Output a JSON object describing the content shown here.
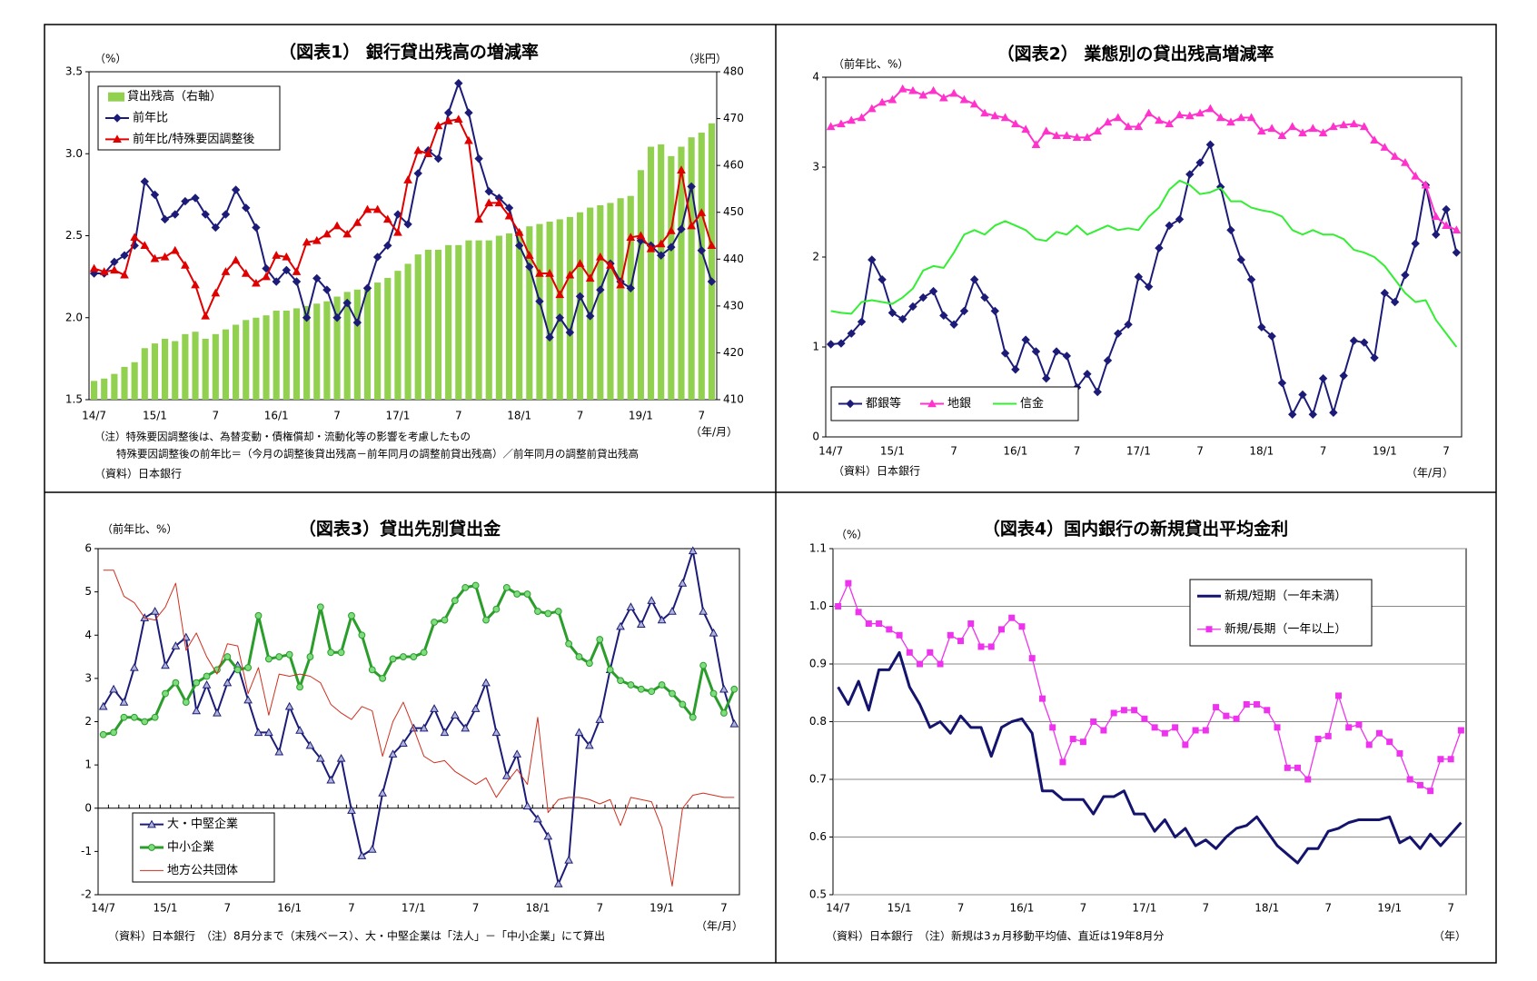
{
  "chart_data": [
    {
      "type": "bar",
      "title": "（図表1） 銀行貸出残高の増減率",
      "y_unit": "（%）",
      "y2_unit": "（兆円）",
      "x_label": "（年/月）",
      "notes": [
        "（注）特殊要因調整後は、為替変動・債権償却・流動化等の影響を考慮したもの",
        "特殊要因調整後の前年比＝（今月の調整後貸出残高－前年同月の調整前貸出残高）／前年同月の調整前貸出残高"
      ],
      "source": "（資料）日本銀行",
      "categories": [
        "14/7",
        null,
        null,
        null,
        null,
        null,
        "15/1",
        null,
        null,
        null,
        null,
        null,
        "7",
        null,
        null,
        null,
        null,
        null,
        "16/1",
        null,
        null,
        null,
        null,
        null,
        "7",
        null,
        null,
        null,
        null,
        null,
        "17/1",
        null,
        null,
        null,
        null,
        null,
        "7",
        null,
        null,
        null,
        null,
        null,
        "18/1",
        null,
        null,
        null,
        null,
        null,
        "7",
        null,
        null,
        null,
        null,
        null,
        "19/1",
        null,
        null,
        null,
        null,
        null,
        "7",
        null
      ],
      "ylim": [
        1.5,
        3.5
      ],
      "yticks": [
        1.5,
        {
          "value": 2,
          "label": "2.0"
        },
        2.5,
        {
          "value": 3,
          "label": "3.0"
        },
        3.5
      ],
      "y2lim": [
        410,
        480
      ],
      "y2ticks": [
        410,
        420,
        430,
        440,
        450,
        460,
        470,
        480
      ],
      "grid": false,
      "legend": "upper left",
      "series": [
        {
          "name": "貸出残高（右軸）",
          "type": "bar",
          "axis": "y2",
          "color": "#92d050",
          "values": [
            414,
            414.5,
            415.5,
            417,
            418,
            421,
            422,
            423,
            422.5,
            424,
            424.5,
            423,
            424,
            425,
            426,
            427,
            427.5,
            428,
            429,
            429,
            429.5,
            430,
            430.5,
            431,
            432,
            433,
            433.5,
            434,
            435,
            436,
            437.5,
            439,
            441,
            442,
            442,
            443,
            443,
            444,
            444,
            444,
            445,
            445.5,
            446,
            447,
            447.5,
            448,
            448.5,
            449,
            450,
            451,
            451.5,
            452,
            453,
            453.5,
            459,
            464,
            464.5,
            462,
            464,
            466,
            467,
            469
          ]
        },
        {
          "name": "前年比",
          "type": "line",
          "color": "#1c1c78",
          "marker": "diamond",
          "values": [
            2.27,
            2.27,
            2.34,
            2.38,
            2.44,
            2.83,
            2.75,
            2.6,
            2.63,
            2.71,
            2.73,
            2.63,
            2.55,
            2.63,
            2.78,
            2.67,
            2.55,
            2.3,
            2.22,
            2.29,
            2.22,
            2.0,
            2.24,
            2.17,
            2.0,
            2.09,
            1.97,
            2.18,
            2.37,
            2.44,
            2.63,
            2.57,
            2.88,
            3.02,
            2.97,
            3.25,
            3.43,
            3.25,
            2.97,
            2.77,
            2.73,
            2.67,
            2.44,
            2.31,
            2.1,
            1.88,
            2.0,
            1.91,
            2.13,
            2.01,
            2.17,
            2.33,
            2.22,
            2.18,
            2.47,
            2.44,
            2.38,
            2.43,
            2.54,
            2.8,
            2.41,
            2.22
          ]
        },
        {
          "name": "前年比/特殊要因調整後",
          "type": "line",
          "color": "#e00000",
          "marker": "triangle",
          "values": [
            2.3,
            2.28,
            2.29,
            2.26,
            2.49,
            2.44,
            2.36,
            2.37,
            2.41,
            2.32,
            2.2,
            2.01,
            2.15,
            2.28,
            2.35,
            2.27,
            2.21,
            2.25,
            2.38,
            2.37,
            2.28,
            2.46,
            2.47,
            2.51,
            2.56,
            2.51,
            2.58,
            2.66,
            2.66,
            2.6,
            2.52,
            2.84,
            3.02,
            3.0,
            3.17,
            3.2,
            3.21,
            3.08,
            2.6,
            2.7,
            2.7,
            2.62,
            2.52,
            2.38,
            2.27,
            2.27,
            2.14,
            2.26,
            2.33,
            2.24,
            2.37,
            2.32,
            2.2,
            2.49,
            2.5,
            2.42,
            2.45,
            2.53,
            2.9,
            2.56,
            2.64,
            2.44
          ]
        }
      ]
    },
    {
      "type": "line",
      "title": "（図表2） 業態別の貸出残高増減率",
      "y_unit": "（前年比、%）",
      "x_label": "（年/月）",
      "source": "（資料）日本銀行",
      "categories": [
        "14/7",
        null,
        null,
        null,
        null,
        null,
        "15/1",
        null,
        null,
        null,
        null,
        null,
        "7",
        null,
        null,
        null,
        null,
        null,
        "16/1",
        null,
        null,
        null,
        null,
        null,
        "7",
        null,
        null,
        null,
        null,
        null,
        "17/1",
        null,
        null,
        null,
        null,
        null,
        "7",
        null,
        null,
        null,
        null,
        null,
        "18/1",
        null,
        null,
        null,
        null,
        null,
        "7",
        null,
        null,
        null,
        null,
        null,
        "19/1",
        null,
        null,
        null,
        null,
        null,
        "7",
        null
      ],
      "ylim": [
        0,
        4
      ],
      "yticks": [
        0,
        1,
        2,
        3,
        4
      ],
      "grid": false,
      "legend": "lower left",
      "series": [
        {
          "name": "都銀等",
          "type": "line",
          "color": "#1c1c78",
          "marker": "diamond",
          "values": [
            1.03,
            1.04,
            1.15,
            1.28,
            1.97,
            1.75,
            1.38,
            1.31,
            1.45,
            1.55,
            1.62,
            1.35,
            1.25,
            1.4,
            1.75,
            1.55,
            1.4,
            0.93,
            0.75,
            1.08,
            0.95,
            0.65,
            0.95,
            0.9,
            0.55,
            0.7,
            0.5,
            0.85,
            1.15,
            1.25,
            1.78,
            1.67,
            2.1,
            2.35,
            2.42,
            2.92,
            3.05,
            3.25,
            2.78,
            2.3,
            1.97,
            1.75,
            1.22,
            1.12,
            0.6,
            0.25,
            0.47,
            0.25,
            0.65,
            0.27,
            0.68,
            1.07,
            1.05,
            0.88,
            1.6,
            1.5,
            1.8,
            2.15,
            2.8,
            2.25,
            2.53,
            2.05
          ]
        },
        {
          "name": "地銀",
          "type": "line",
          "color": "#ff33cc",
          "marker": "triangle",
          "values": [
            3.45,
            3.48,
            3.52,
            3.55,
            3.65,
            3.72,
            3.75,
            3.87,
            3.85,
            3.8,
            3.85,
            3.77,
            3.82,
            3.75,
            3.7,
            3.6,
            3.57,
            3.55,
            3.48,
            3.42,
            3.25,
            3.4,
            3.35,
            3.35,
            3.33,
            3.33,
            3.4,
            3.5,
            3.55,
            3.45,
            3.45,
            3.6,
            3.52,
            3.48,
            3.58,
            3.57,
            3.6,
            3.65,
            3.55,
            3.5,
            3.55,
            3.55,
            3.4,
            3.43,
            3.35,
            3.45,
            3.38,
            3.43,
            3.38,
            3.45,
            3.47,
            3.48,
            3.45,
            3.3,
            3.22,
            3.12,
            3.05,
            2.9,
            2.8,
            2.45,
            2.35,
            2.3
          ]
        },
        {
          "name": "信金",
          "type": "line",
          "color": "#33ee33",
          "values": [
            1.4,
            1.38,
            1.37,
            1.5,
            1.52,
            1.5,
            1.48,
            1.55,
            1.65,
            1.85,
            1.9,
            1.88,
            2.05,
            2.25,
            2.3,
            2.25,
            2.35,
            2.4,
            2.35,
            2.3,
            2.2,
            2.18,
            2.28,
            2.25,
            2.35,
            2.25,
            2.3,
            2.35,
            2.3,
            2.32,
            2.3,
            2.45,
            2.55,
            2.75,
            2.85,
            2.8,
            2.7,
            2.72,
            2.77,
            2.62,
            2.62,
            2.55,
            2.52,
            2.5,
            2.45,
            2.3,
            2.25,
            2.3,
            2.25,
            2.25,
            2.2,
            2.08,
            2.05,
            2.0,
            1.9,
            1.75,
            1.6,
            1.5,
            1.52,
            1.3,
            1.15,
            1.0
          ]
        }
      ]
    },
    {
      "type": "line",
      "title": "（図表3）貸出先別貸出金",
      "y_unit": "（前年比、%）",
      "x_label": "（年/月）",
      "source": "（資料）日本銀行　（注）8月分まで（末残ベース）、大・中堅企業は「法人」－「中小企業」にて算出",
      "categories": [
        "14/7",
        null,
        null,
        null,
        null,
        null,
        "15/1",
        null,
        null,
        null,
        null,
        null,
        "7",
        null,
        null,
        null,
        null,
        null,
        "16/1",
        null,
        null,
        null,
        null,
        null,
        "7",
        null,
        null,
        null,
        null,
        null,
        "17/1",
        null,
        null,
        null,
        null,
        null,
        "7",
        null,
        null,
        null,
        null,
        null,
        "18/1",
        null,
        null,
        null,
        null,
        null,
        "7",
        null,
        null,
        null,
        null,
        null,
        "19/1",
        null,
        null,
        null,
        null,
        null,
        "7",
        null
      ],
      "ylim": [
        -2,
        6
      ],
      "yticks": [
        -2,
        -1,
        0,
        1,
        2,
        3,
        4,
        5,
        6
      ],
      "grid": false,
      "legend": "lower left",
      "series": [
        {
          "name": "大・中堅企業",
          "type": "line",
          "color": "#1c1c78",
          "marker": "triangle",
          "marker_fill": "#b0b4d8",
          "values": [
            2.35,
            2.75,
            2.45,
            3.25,
            4.4,
            4.55,
            3.3,
            3.75,
            3.95,
            2.25,
            2.85,
            2.2,
            2.9,
            3.3,
            2.5,
            1.75,
            1.75,
            1.3,
            2.35,
            1.8,
            1.45,
            1.15,
            0.65,
            1.15,
            -0.05,
            -1.1,
            -0.95,
            0.35,
            1.25,
            1.5,
            1.85,
            1.85,
            2.3,
            1.75,
            2.15,
            1.85,
            2.3,
            2.9,
            1.75,
            0.75,
            1.25,
            0.05,
            -0.25,
            -0.65,
            -1.75,
            -1.2,
            1.75,
            1.45,
            2.05,
            3.2,
            4.2,
            4.65,
            4.25,
            4.8,
            4.35,
            4.55,
            5.2,
            5.95,
            4.55,
            4.05,
            2.75,
            1.95
          ]
        },
        {
          "name": "中小企業",
          "type": "line",
          "color": "#2a9d2a",
          "marker": "circle",
          "marker_fill": "#7fdc7f",
          "width": 3,
          "values": [
            1.7,
            1.75,
            2.1,
            2.1,
            2.0,
            2.1,
            2.65,
            2.9,
            2.45,
            2.9,
            3.05,
            3.2,
            3.5,
            3.2,
            3.25,
            4.45,
            3.45,
            3.5,
            3.55,
            2.8,
            3.5,
            4.65,
            3.6,
            3.6,
            4.45,
            4.0,
            3.2,
            3.0,
            3.45,
            3.5,
            3.5,
            3.6,
            4.3,
            4.35,
            4.8,
            5.1,
            5.15,
            4.35,
            4.6,
            5.1,
            4.95,
            4.95,
            4.55,
            4.5,
            4.55,
            3.8,
            3.5,
            3.35,
            3.9,
            3.2,
            2.95,
            2.85,
            2.75,
            2.7,
            2.85,
            2.65,
            2.4,
            2.1,
            3.3,
            2.65,
            2.2,
            2.75
          ]
        },
        {
          "name": "地方公共団体",
          "type": "line",
          "color": "#d03020",
          "width": 1,
          "values": [
            5.5,
            5.5,
            4.9,
            4.75,
            4.4,
            4.35,
            4.65,
            5.2,
            3.65,
            4.05,
            3.5,
            3.1,
            3.8,
            3.75,
            2.65,
            3.25,
            2.15,
            3.1,
            3.05,
            3.1,
            3.05,
            2.9,
            2.4,
            2.2,
            2.05,
            2.35,
            2.25,
            1.2,
            2.0,
            2.45,
            1.85,
            1.2,
            1.05,
            1.1,
            0.85,
            0.7,
            0.55,
            0.7,
            0.25,
            0.6,
            0.9,
            0.55,
            2.1,
            -0.1,
            0.2,
            0.25,
            0.25,
            0.2,
            0.1,
            0.2,
            -0.4,
            0.25,
            0.2,
            0.15,
            -0.45,
            -1.8,
            0.0,
            0.3,
            0.35,
            0.3,
            0.25,
            0.25
          ]
        }
      ]
    },
    {
      "type": "line",
      "title": "（図表4）国内銀行の新規貸出平均金利",
      "y_unit": "（%）",
      "x_label": "（年）",
      "source": "（資料）日本銀行　（注）新規は3ヵ月移動平均値、直近は19年8月分",
      "categories": [
        "14/7",
        null,
        null,
        null,
        null,
        null,
        "15/1",
        null,
        null,
        null,
        null,
        null,
        "7",
        null,
        null,
        null,
        null,
        null,
        "16/1",
        null,
        null,
        null,
        null,
        null,
        "7",
        null,
        null,
        null,
        null,
        null,
        "17/1",
        null,
        null,
        null,
        null,
        null,
        "7",
        null,
        null,
        null,
        null,
        null,
        "18/1",
        null,
        null,
        null,
        null,
        null,
        "7",
        null,
        null,
        null,
        null,
        null,
        "19/1",
        null,
        null,
        null,
        null,
        null,
        "7",
        null
      ],
      "ylim": [
        0.5,
        1.1
      ],
      "yticks": [
        0.5,
        0.6,
        0.7,
        0.8,
        0.9,
        {
          "value": 1,
          "label": "1.0"
        },
        1.1
      ],
      "grid": true,
      "legend": "upper right",
      "series": [
        {
          "name": "新規/短期（一年未満）",
          "type": "line",
          "color": "#14146e",
          "width": 3,
          "values": [
            0.86,
            0.83,
            0.87,
            0.82,
            0.89,
            0.89,
            0.92,
            0.86,
            0.83,
            0.79,
            0.8,
            0.78,
            0.81,
            0.79,
            0.79,
            0.74,
            0.79,
            0.8,
            0.805,
            0.78,
            0.68,
            0.68,
            0.665,
            0.665,
            0.665,
            0.64,
            0.67,
            0.67,
            0.68,
            0.64,
            0.64,
            0.61,
            0.63,
            0.6,
            0.615,
            0.585,
            0.595,
            0.58,
            0.6,
            0.615,
            0.62,
            0.635,
            0.61,
            0.585,
            0.57,
            0.555,
            0.58,
            0.58,
            0.61,
            0.615,
            0.625,
            0.63,
            0.63,
            0.63,
            0.635,
            0.59,
            0.6,
            0.58,
            0.605,
            0.585,
            0.605,
            0.625
          ]
        },
        {
          "name": "新規/長期（一年以上）",
          "type": "line",
          "color": "#ee33ee",
          "marker": "square",
          "width": 1.3,
          "values": [
            1.0,
            1.04,
            0.99,
            0.97,
            0.97,
            0.96,
            0.95,
            0.92,
            0.9,
            0.92,
            0.9,
            0.95,
            0.94,
            0.97,
            0.93,
            0.93,
            0.96,
            0.98,
            0.965,
            0.91,
            0.84,
            0.79,
            0.73,
            0.77,
            0.765,
            0.8,
            0.785,
            0.815,
            0.82,
            0.82,
            0.805,
            0.79,
            0.78,
            0.79,
            0.76,
            0.785,
            0.785,
            0.825,
            0.81,
            0.805,
            0.83,
            0.83,
            0.82,
            0.79,
            0.72,
            0.72,
            0.7,
            0.77,
            0.775,
            0.845,
            0.79,
            0.795,
            0.76,
            0.78,
            0.765,
            0.745,
            0.7,
            0.69,
            0.68,
            0.735,
            0.735,
            0.785
          ]
        }
      ]
    }
  ]
}
